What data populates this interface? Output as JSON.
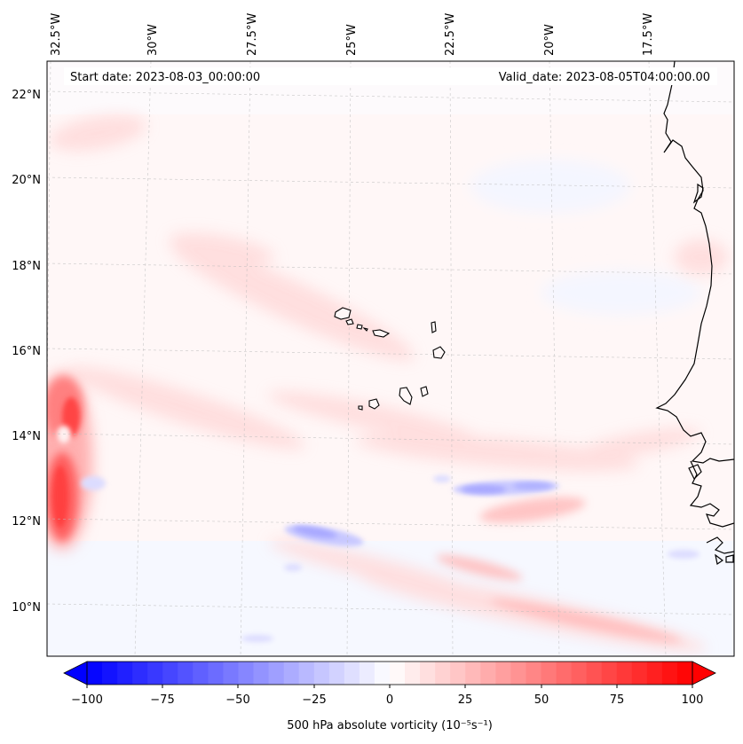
{
  "map": {
    "start_label": "Start date: 2023-08-03_00:00:00",
    "valid_label": "Valid_date: 2023-08-05T04:00:00.00",
    "lon_labels": [
      "32.5°W",
      "30°W",
      "27.5°W",
      "25°W",
      "22.5°W",
      "20°W",
      "17.5°W"
    ],
    "lat_labels": [
      "22°N",
      "20°N",
      "18°N",
      "16°N",
      "14°N",
      "12°N",
      "10°N"
    ]
  },
  "colorbar": {
    "ticks": [
      "−100",
      "−75",
      "−50",
      "−25",
      "0",
      "25",
      "50",
      "75",
      "100"
    ],
    "label": "500 hPa absolute vorticity (10⁻⁵s⁻¹)",
    "min": -100,
    "max": 100,
    "levels": 41,
    "neg_color": "#0000ff",
    "pos_color": "#ff0000"
  },
  "features": [
    {
      "name": "vorticity-max-west",
      "sign": "positive",
      "lon": -32.3,
      "lat": 13.2,
      "peak": 70
    },
    {
      "name": "vorticity-min-central",
      "sign": "negative",
      "lon": -26.2,
      "lat": 11.6,
      "peak": -25
    },
    {
      "name": "vorticity-min-east",
      "sign": "negative",
      "lon": -21.0,
      "lat": 12.8,
      "peak": -25
    },
    {
      "name": "vorticity-band-south",
      "sign": "positive",
      "lon": -20.5,
      "lat": 10.0,
      "peak": 20
    }
  ]
}
